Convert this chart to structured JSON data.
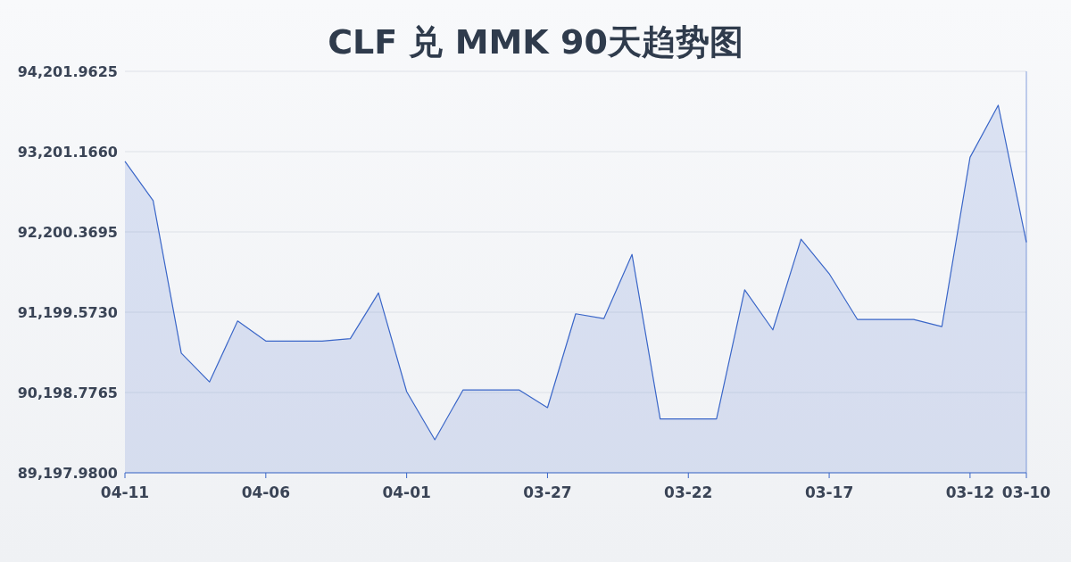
{
  "chart_data": {
    "type": "area",
    "title": "CLF 兑 MMK 90天趋势图",
    "categories": [
      "04-11",
      null,
      null,
      null,
      null,
      "04-06",
      null,
      null,
      null,
      null,
      "04-01",
      null,
      null,
      null,
      null,
      "03-27",
      null,
      null,
      null,
      null,
      "03-22",
      null,
      null,
      null,
      null,
      "03-17",
      null,
      null,
      null,
      null,
      "03-12",
      null,
      "03-10"
    ],
    "series": [
      {
        "color": "#3a66c8",
        "values": [
          93080,
          92590,
          90690,
          90330,
          91090,
          90840,
          90840,
          90840,
          90870,
          91440,
          90210,
          89610,
          90230,
          90230,
          90230,
          90010,
          91180,
          91120,
          91920,
          89870,
          89870,
          89870,
          91480,
          90980,
          92110,
          91680,
          91110,
          91110,
          91110,
          91020,
          93130,
          93780,
          92070
        ]
      }
    ],
    "ylim": [
      89197.98,
      94201.9625
    ],
    "yticks": [
      {
        "value": 89197.98,
        "label": "89,197.9800"
      },
      {
        "value": 90198.7765,
        "label": "90,198.7765"
      },
      {
        "value": 91199.573,
        "label": "91,199.5730"
      },
      {
        "value": 92200.3695,
        "label": "92,200.3695"
      },
      {
        "value": 93201.166,
        "label": "93,201.1660"
      },
      {
        "value": 94201.9625,
        "label": "94,201.9625"
      }
    ],
    "grid": "y"
  }
}
